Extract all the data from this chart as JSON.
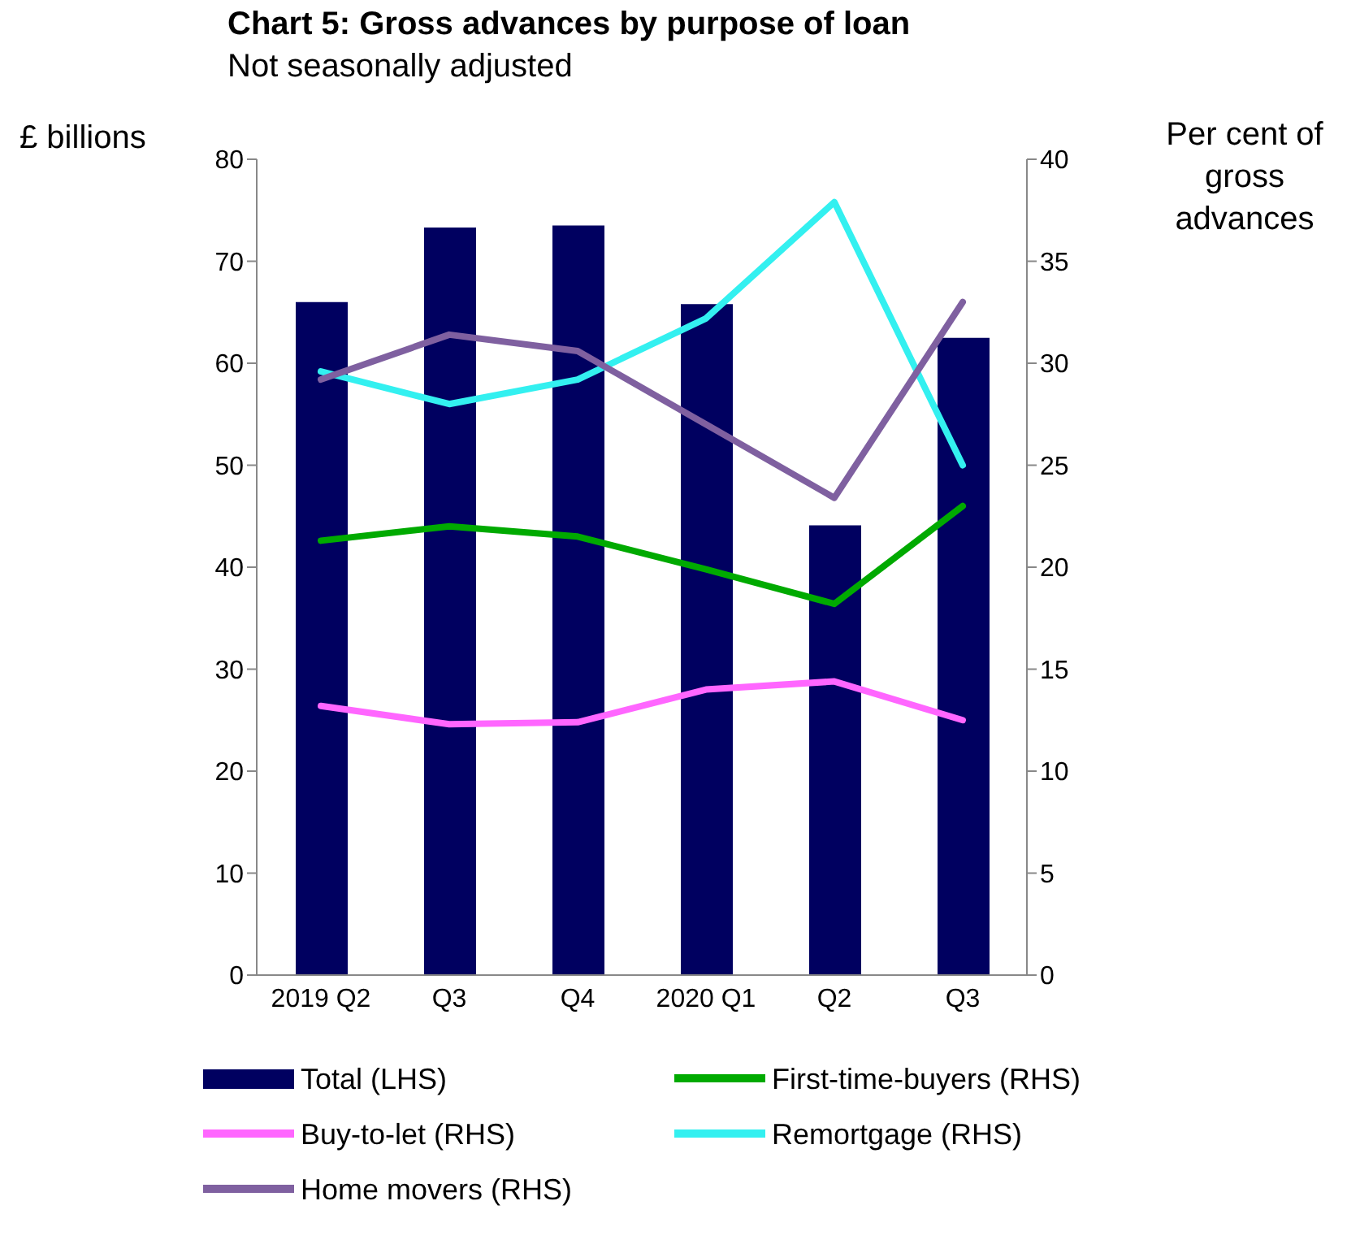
{
  "chart_data": {
    "type": "bar",
    "title": "Chart 5: Gross advances by purpose of loan",
    "subtitle": "Not seasonally adjusted",
    "ylabel": "£ billions",
    "y2label": "Per cent of gross advances",
    "categories": [
      "2019 Q2",
      "Q3",
      "Q4",
      "2020 Q1",
      "Q2",
      "Q3"
    ],
    "series": [
      {
        "name": "Total (LHS)",
        "color": "#000060",
        "values": [
          66.0,
          73.3,
          73.5,
          65.8,
          44.1,
          62.5
        ]
      },
      {
        "name": "First-time-buyers (RHS)",
        "type": "line",
        "axis": "y2",
        "color": "#00aa00",
        "values": [
          21.3,
          22.0,
          21.5,
          19.9,
          18.2,
          23.0
        ]
      },
      {
        "name": "Buy-to-let (RHS)",
        "type": "line",
        "axis": "y2",
        "color": "#ff66ff",
        "values": [
          13.2,
          12.3,
          12.4,
          14.0,
          14.4,
          12.5
        ]
      },
      {
        "name": "Remortgage (RHS)",
        "type": "line",
        "axis": "y2",
        "color": "#33f0f0",
        "values": [
          29.6,
          28.0,
          29.2,
          32.2,
          37.9,
          25.0
        ]
      },
      {
        "name": "Home movers (RHS)",
        "type": "line",
        "axis": "y2",
        "color": "#7f60a0",
        "values": [
          29.2,
          31.4,
          30.6,
          27.0,
          23.4,
          33.0
        ]
      }
    ],
    "ylim": [
      0,
      80
    ],
    "yticks": [
      0,
      10,
      20,
      30,
      40,
      50,
      60,
      70,
      80
    ],
    "y2lim": [
      0,
      40
    ],
    "y2ticks": [
      0,
      5,
      10,
      15,
      20,
      25,
      30,
      35,
      40
    ],
    "grid": false,
    "legend": "bottom",
    "marker": "none",
    "line_style": "solid"
  }
}
